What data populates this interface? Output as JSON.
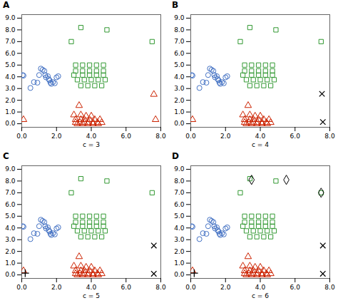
{
  "chart_data": [
    {
      "type": "scatter",
      "title": "A",
      "xlabel": "c = 3",
      "grid": false,
      "xlim": [
        0.0,
        8.0
      ],
      "ylim": [
        -0.3,
        9.3
      ],
      "xticks": [
        {
          "value": 0.0,
          "label": "0.0"
        },
        {
          "value": 2.0,
          "label": "2.0"
        },
        {
          "value": 4.0,
          "label": "4.0"
        },
        {
          "value": 6.0,
          "label": "6.0"
        },
        {
          "value": 8.0,
          "label": "8.0"
        }
      ],
      "yticks": [
        {
          "value": 0.0,
          "label": "0.0"
        },
        {
          "value": 1.0,
          "label": "1.0"
        },
        {
          "value": 2.0,
          "label": "2.0"
        },
        {
          "value": 3.0,
          "label": "3.0"
        },
        {
          "value": 4.0,
          "label": "4.0"
        },
        {
          "value": 5.0,
          "label": "5.0"
        },
        {
          "value": 6.0,
          "label": "6.0"
        },
        {
          "value": 7.0,
          "label": "7.0"
        },
        {
          "value": 8.0,
          "label": "8.0"
        },
        {
          "value": 9.0,
          "label": "9.0"
        }
      ],
      "series": [
        {
          "color": "#4472C4",
          "marker": "circle",
          "x": [
            0.05,
            0.1,
            0.5,
            0.7,
            0.9,
            1.0,
            1.1,
            1.2,
            1.3,
            1.35,
            1.4,
            1.5,
            1.55,
            1.6,
            1.65,
            1.7,
            1.8,
            1.9,
            2.0,
            2.1
          ],
          "y": [
            4.15,
            4.1,
            3.05,
            3.55,
            3.5,
            4.15,
            4.7,
            4.6,
            4.5,
            4.15,
            3.95,
            4.05,
            3.8,
            3.7,
            3.5,
            3.4,
            3.55,
            3.45,
            3.95,
            4.05
          ]
        },
        {
          "color": "#339933",
          "marker": "square",
          "x": [
            2.85,
            3.4,
            4.9,
            7.5,
            3.1,
            3.5,
            3.9,
            4.3,
            4.7,
            3.1,
            3.5,
            3.9,
            4.3,
            4.7,
            3.0,
            3.5,
            3.9,
            4.3,
            4.7,
            3.2,
            3.6,
            4.0,
            4.4,
            4.8,
            3.4,
            3.8,
            4.2,
            4.6
          ],
          "y": [
            7.0,
            8.2,
            8.0,
            7.0,
            5.0,
            5.0,
            5.0,
            5.0,
            5.0,
            4.5,
            4.5,
            4.5,
            4.5,
            4.5,
            4.15,
            4.15,
            4.15,
            4.15,
            4.15,
            3.75,
            3.75,
            3.75,
            3.75,
            3.75,
            3.25,
            3.25,
            3.25,
            3.25
          ]
        },
        {
          "color": "#CC2200",
          "marker": "triangle",
          "x": [
            0.1,
            3.3,
            3.0,
            3.4,
            3.7,
            4.0,
            3.1,
            3.4,
            3.6,
            3.9,
            4.2,
            4.5,
            3.1,
            3.35,
            3.6,
            3.85,
            4.1,
            4.35,
            4.6,
            3.2,
            3.5,
            3.8,
            4.1,
            4.4
          ],
          "y": [
            0.35,
            1.55,
            0.75,
            0.75,
            0.65,
            0.65,
            0.35,
            0.35,
            0.35,
            0.35,
            0.35,
            0.35,
            0.1,
            0.1,
            0.1,
            0.1,
            0.1,
            0.1,
            0.1,
            0.0,
            0.0,
            0.0,
            0.0,
            0.0
          ]
        },
        {
          "color": "#CC2200",
          "marker": "triangle",
          "x": [
            7.6,
            7.7
          ],
          "y": [
            2.5,
            0.35
          ]
        }
      ]
    },
    {
      "type": "scatter",
      "title": "B",
      "xlabel": "c = 4",
      "grid": false,
      "xlim": [
        0.0,
        8.0
      ],
      "ylim": [
        -0.3,
        9.3
      ],
      "xticks": [
        {
          "value": 0.0,
          "label": "0.0"
        },
        {
          "value": 2.0,
          "label": "2.0"
        },
        {
          "value": 4.0,
          "label": "4.0"
        },
        {
          "value": 6.0,
          "label": "6.0"
        },
        {
          "value": 8.0,
          "label": "8.0"
        }
      ],
      "yticks": [
        {
          "value": 0.0,
          "label": "0.0"
        },
        {
          "value": 1.0,
          "label": "1.0"
        },
        {
          "value": 2.0,
          "label": "2.0"
        },
        {
          "value": 3.0,
          "label": "3.0"
        },
        {
          "value": 4.0,
          "label": "4.0"
        },
        {
          "value": 5.0,
          "label": "5.0"
        },
        {
          "value": 6.0,
          "label": "6.0"
        },
        {
          "value": 7.0,
          "label": "7.0"
        },
        {
          "value": 8.0,
          "label": "8.0"
        },
        {
          "value": 9.0,
          "label": "9.0"
        }
      ],
      "series": [
        {
          "color": "#4472C4",
          "marker": "circle",
          "x": [
            0.05,
            0.1,
            0.5,
            0.7,
            0.9,
            1.0,
            1.1,
            1.2,
            1.3,
            1.35,
            1.4,
            1.5,
            1.55,
            1.6,
            1.65,
            1.7,
            1.8,
            1.9,
            2.0,
            2.1
          ],
          "y": [
            4.15,
            4.1,
            3.05,
            3.55,
            3.5,
            4.15,
            4.7,
            4.6,
            4.5,
            4.15,
            3.95,
            4.05,
            3.8,
            3.7,
            3.5,
            3.4,
            3.55,
            3.45,
            3.95,
            4.05
          ]
        },
        {
          "color": "#339933",
          "marker": "square",
          "x": [
            2.85,
            3.4,
            4.9,
            7.5,
            3.1,
            3.5,
            3.9,
            4.3,
            4.7,
            3.1,
            3.5,
            3.9,
            4.3,
            4.7,
            3.0,
            3.5,
            3.9,
            4.3,
            4.7,
            3.2,
            3.6,
            4.0,
            4.4,
            4.8,
            3.4,
            3.8,
            4.2,
            4.6
          ],
          "y": [
            7.0,
            8.2,
            8.0,
            7.0,
            5.0,
            5.0,
            5.0,
            5.0,
            5.0,
            4.5,
            4.5,
            4.5,
            4.5,
            4.5,
            4.15,
            4.15,
            4.15,
            4.15,
            4.15,
            3.75,
            3.75,
            3.75,
            3.75,
            3.75,
            3.25,
            3.25,
            3.25,
            3.25
          ]
        },
        {
          "color": "#CC2200",
          "marker": "triangle",
          "x": [
            0.1,
            3.3,
            3.0,
            3.4,
            3.7,
            4.0,
            3.1,
            3.4,
            3.6,
            3.9,
            4.2,
            4.5,
            3.1,
            3.35,
            3.6,
            3.85,
            4.1,
            4.35,
            4.6,
            3.2,
            3.5,
            3.8,
            4.1,
            4.4
          ],
          "y": [
            0.35,
            1.55,
            0.75,
            0.75,
            0.65,
            0.65,
            0.35,
            0.35,
            0.35,
            0.35,
            0.35,
            0.35,
            0.1,
            0.1,
            0.1,
            0.1,
            0.1,
            0.1,
            0.1,
            0.0,
            0.0,
            0.0,
            0.0,
            0.0
          ]
        },
        {
          "color": "#000000",
          "marker": "x",
          "x": [
            7.55,
            7.6
          ],
          "y": [
            2.55,
            0.15
          ]
        }
      ]
    },
    {
      "type": "scatter",
      "title": "C",
      "xlabel": "c = 5",
      "grid": false,
      "xlim": [
        0.0,
        8.0
      ],
      "ylim": [
        -0.3,
        9.3
      ],
      "xticks": [
        {
          "value": 0.0,
          "label": "0.0"
        },
        {
          "value": 2.0,
          "label": "2.0"
        },
        {
          "value": 4.0,
          "label": "4.0"
        },
        {
          "value": 6.0,
          "label": "6.0"
        },
        {
          "value": 8.0,
          "label": "8.0"
        }
      ],
      "yticks": [
        {
          "value": 0.0,
          "label": "0.0"
        },
        {
          "value": 1.0,
          "label": "1.0"
        },
        {
          "value": 2.0,
          "label": "2.0"
        },
        {
          "value": 3.0,
          "label": "3.0"
        },
        {
          "value": 4.0,
          "label": "4.0"
        },
        {
          "value": 5.0,
          "label": "5.0"
        },
        {
          "value": 6.0,
          "label": "6.0"
        },
        {
          "value": 7.0,
          "label": "7.0"
        },
        {
          "value": 8.0,
          "label": "8.0"
        },
        {
          "value": 9.0,
          "label": "9.0"
        }
      ],
      "series": [
        {
          "color": "#4472C4",
          "marker": "circle",
          "x": [
            0.05,
            0.1,
            0.5,
            0.7,
            0.9,
            1.0,
            1.1,
            1.2,
            1.3,
            1.35,
            1.4,
            1.5,
            1.55,
            1.6,
            1.65,
            1.7,
            1.8,
            1.9,
            2.0,
            2.1
          ],
          "y": [
            4.15,
            4.1,
            3.05,
            3.55,
            3.5,
            4.15,
            4.7,
            4.6,
            4.5,
            4.15,
            3.95,
            4.05,
            3.8,
            3.7,
            3.5,
            3.4,
            3.55,
            3.45,
            3.95,
            4.05
          ]
        },
        {
          "color": "#339933",
          "marker": "square",
          "x": [
            2.85,
            3.4,
            4.9,
            7.5,
            3.1,
            3.5,
            3.9,
            4.3,
            4.7,
            3.1,
            3.5,
            3.9,
            4.3,
            4.7,
            3.0,
            3.5,
            3.9,
            4.3,
            4.7,
            3.2,
            3.6,
            4.0,
            4.4,
            4.8,
            3.4,
            3.8,
            4.2,
            4.6
          ],
          "y": [
            7.0,
            8.2,
            8.0,
            7.0,
            5.0,
            5.0,
            5.0,
            5.0,
            5.0,
            4.5,
            4.5,
            4.5,
            4.5,
            4.5,
            4.15,
            4.15,
            4.15,
            4.15,
            4.15,
            3.75,
            3.75,
            3.75,
            3.75,
            3.75,
            3.25,
            3.25,
            3.25,
            3.25
          ]
        },
        {
          "color": "#CC2200",
          "marker": "triangle",
          "x": [
            0.1,
            3.3,
            3.0,
            3.4,
            3.7,
            4.0,
            3.1,
            3.4,
            3.6,
            3.9,
            4.2,
            4.5,
            3.1,
            3.35,
            3.6,
            3.85,
            4.1,
            4.35,
            4.6,
            3.2,
            3.5,
            3.8,
            4.1,
            4.4
          ],
          "y": [
            0.35,
            1.55,
            0.75,
            0.75,
            0.65,
            0.65,
            0.35,
            0.35,
            0.35,
            0.35,
            0.35,
            0.35,
            0.1,
            0.1,
            0.1,
            0.1,
            0.1,
            0.1,
            0.1,
            0.0,
            0.0,
            0.0,
            0.0,
            0.0
          ]
        },
        {
          "color": "#000000",
          "marker": "plus",
          "x": [
            0.2
          ],
          "y": [
            0.15
          ]
        },
        {
          "color": "#000000",
          "marker": "x",
          "x": [
            7.6,
            7.6
          ],
          "y": [
            2.5,
            0.1
          ]
        }
      ]
    },
    {
      "type": "scatter",
      "title": "D",
      "xlabel": "c = 6",
      "grid": false,
      "xlim": [
        0.0,
        8.0
      ],
      "ylim": [
        -0.3,
        9.3
      ],
      "xticks": [
        {
          "value": 0.0,
          "label": "0.0"
        },
        {
          "value": 2.0,
          "label": "2.0"
        },
        {
          "value": 4.0,
          "label": "4.0"
        },
        {
          "value": 6.0,
          "label": "6.0"
        },
        {
          "value": 8.0,
          "label": "8.0"
        }
      ],
      "yticks": [
        {
          "value": 0.0,
          "label": "0.0"
        },
        {
          "value": 1.0,
          "label": "1.0"
        },
        {
          "value": 2.0,
          "label": "2.0"
        },
        {
          "value": 3.0,
          "label": "3.0"
        },
        {
          "value": 4.0,
          "label": "4.0"
        },
        {
          "value": 5.0,
          "label": "5.0"
        },
        {
          "value": 6.0,
          "label": "6.0"
        },
        {
          "value": 7.0,
          "label": "7.0"
        },
        {
          "value": 8.0,
          "label": "8.0"
        },
        {
          "value": 9.0,
          "label": "9.0"
        }
      ],
      "series": [
        {
          "color": "#4472C4",
          "marker": "circle",
          "x": [
            0.05,
            0.1,
            0.5,
            0.7,
            0.9,
            1.0,
            1.1,
            1.2,
            1.3,
            1.35,
            1.4,
            1.5,
            1.55,
            1.6,
            1.65,
            1.7,
            1.8,
            1.9,
            2.0,
            2.1
          ],
          "y": [
            4.15,
            4.1,
            3.05,
            3.55,
            3.5,
            4.15,
            4.7,
            4.6,
            4.5,
            4.15,
            3.95,
            4.05,
            3.8,
            3.7,
            3.5,
            3.4,
            3.55,
            3.45,
            3.95,
            4.05
          ]
        },
        {
          "color": "#339933",
          "marker": "square",
          "x": [
            2.85,
            3.4,
            4.9,
            7.5,
            3.1,
            3.5,
            3.9,
            4.3,
            4.7,
            3.1,
            3.5,
            3.9,
            4.3,
            4.7,
            3.0,
            3.5,
            3.9,
            4.3,
            4.7,
            3.2,
            3.6,
            4.0,
            4.4,
            4.8,
            3.4,
            3.8,
            4.2,
            4.6
          ],
          "y": [
            7.0,
            8.2,
            8.0,
            7.0,
            5.0,
            5.0,
            5.0,
            5.0,
            5.0,
            4.5,
            4.5,
            4.5,
            4.5,
            4.5,
            4.15,
            4.15,
            4.15,
            4.15,
            4.15,
            3.75,
            3.75,
            3.75,
            3.75,
            3.75,
            3.25,
            3.25,
            3.25,
            3.25
          ]
        },
        {
          "color": "#CC2200",
          "marker": "triangle",
          "x": [
            0.1,
            3.3,
            3.0,
            3.4,
            3.7,
            4.0,
            3.1,
            3.4,
            3.6,
            3.9,
            4.2,
            4.5,
            3.1,
            3.35,
            3.6,
            3.85,
            4.1,
            4.35,
            4.6,
            3.2,
            3.5,
            3.8,
            4.1,
            4.4
          ],
          "y": [
            0.35,
            1.55,
            0.75,
            0.75,
            0.65,
            0.65,
            0.35,
            0.35,
            0.35,
            0.35,
            0.35,
            0.35,
            0.1,
            0.1,
            0.1,
            0.1,
            0.1,
            0.1,
            0.1,
            0.0,
            0.0,
            0.0,
            0.0,
            0.0
          ]
        },
        {
          "color": "#000000",
          "marker": "diamond",
          "x": [
            3.5,
            5.5,
            7.5
          ],
          "y": [
            8.1,
            8.1,
            7.0
          ]
        },
        {
          "color": "#000000",
          "marker": "plus",
          "x": [
            0.2
          ],
          "y": [
            0.15
          ]
        },
        {
          "color": "#000000",
          "marker": "x",
          "x": [
            7.6,
            7.6
          ],
          "y": [
            2.5,
            0.1
          ]
        }
      ]
    }
  ]
}
